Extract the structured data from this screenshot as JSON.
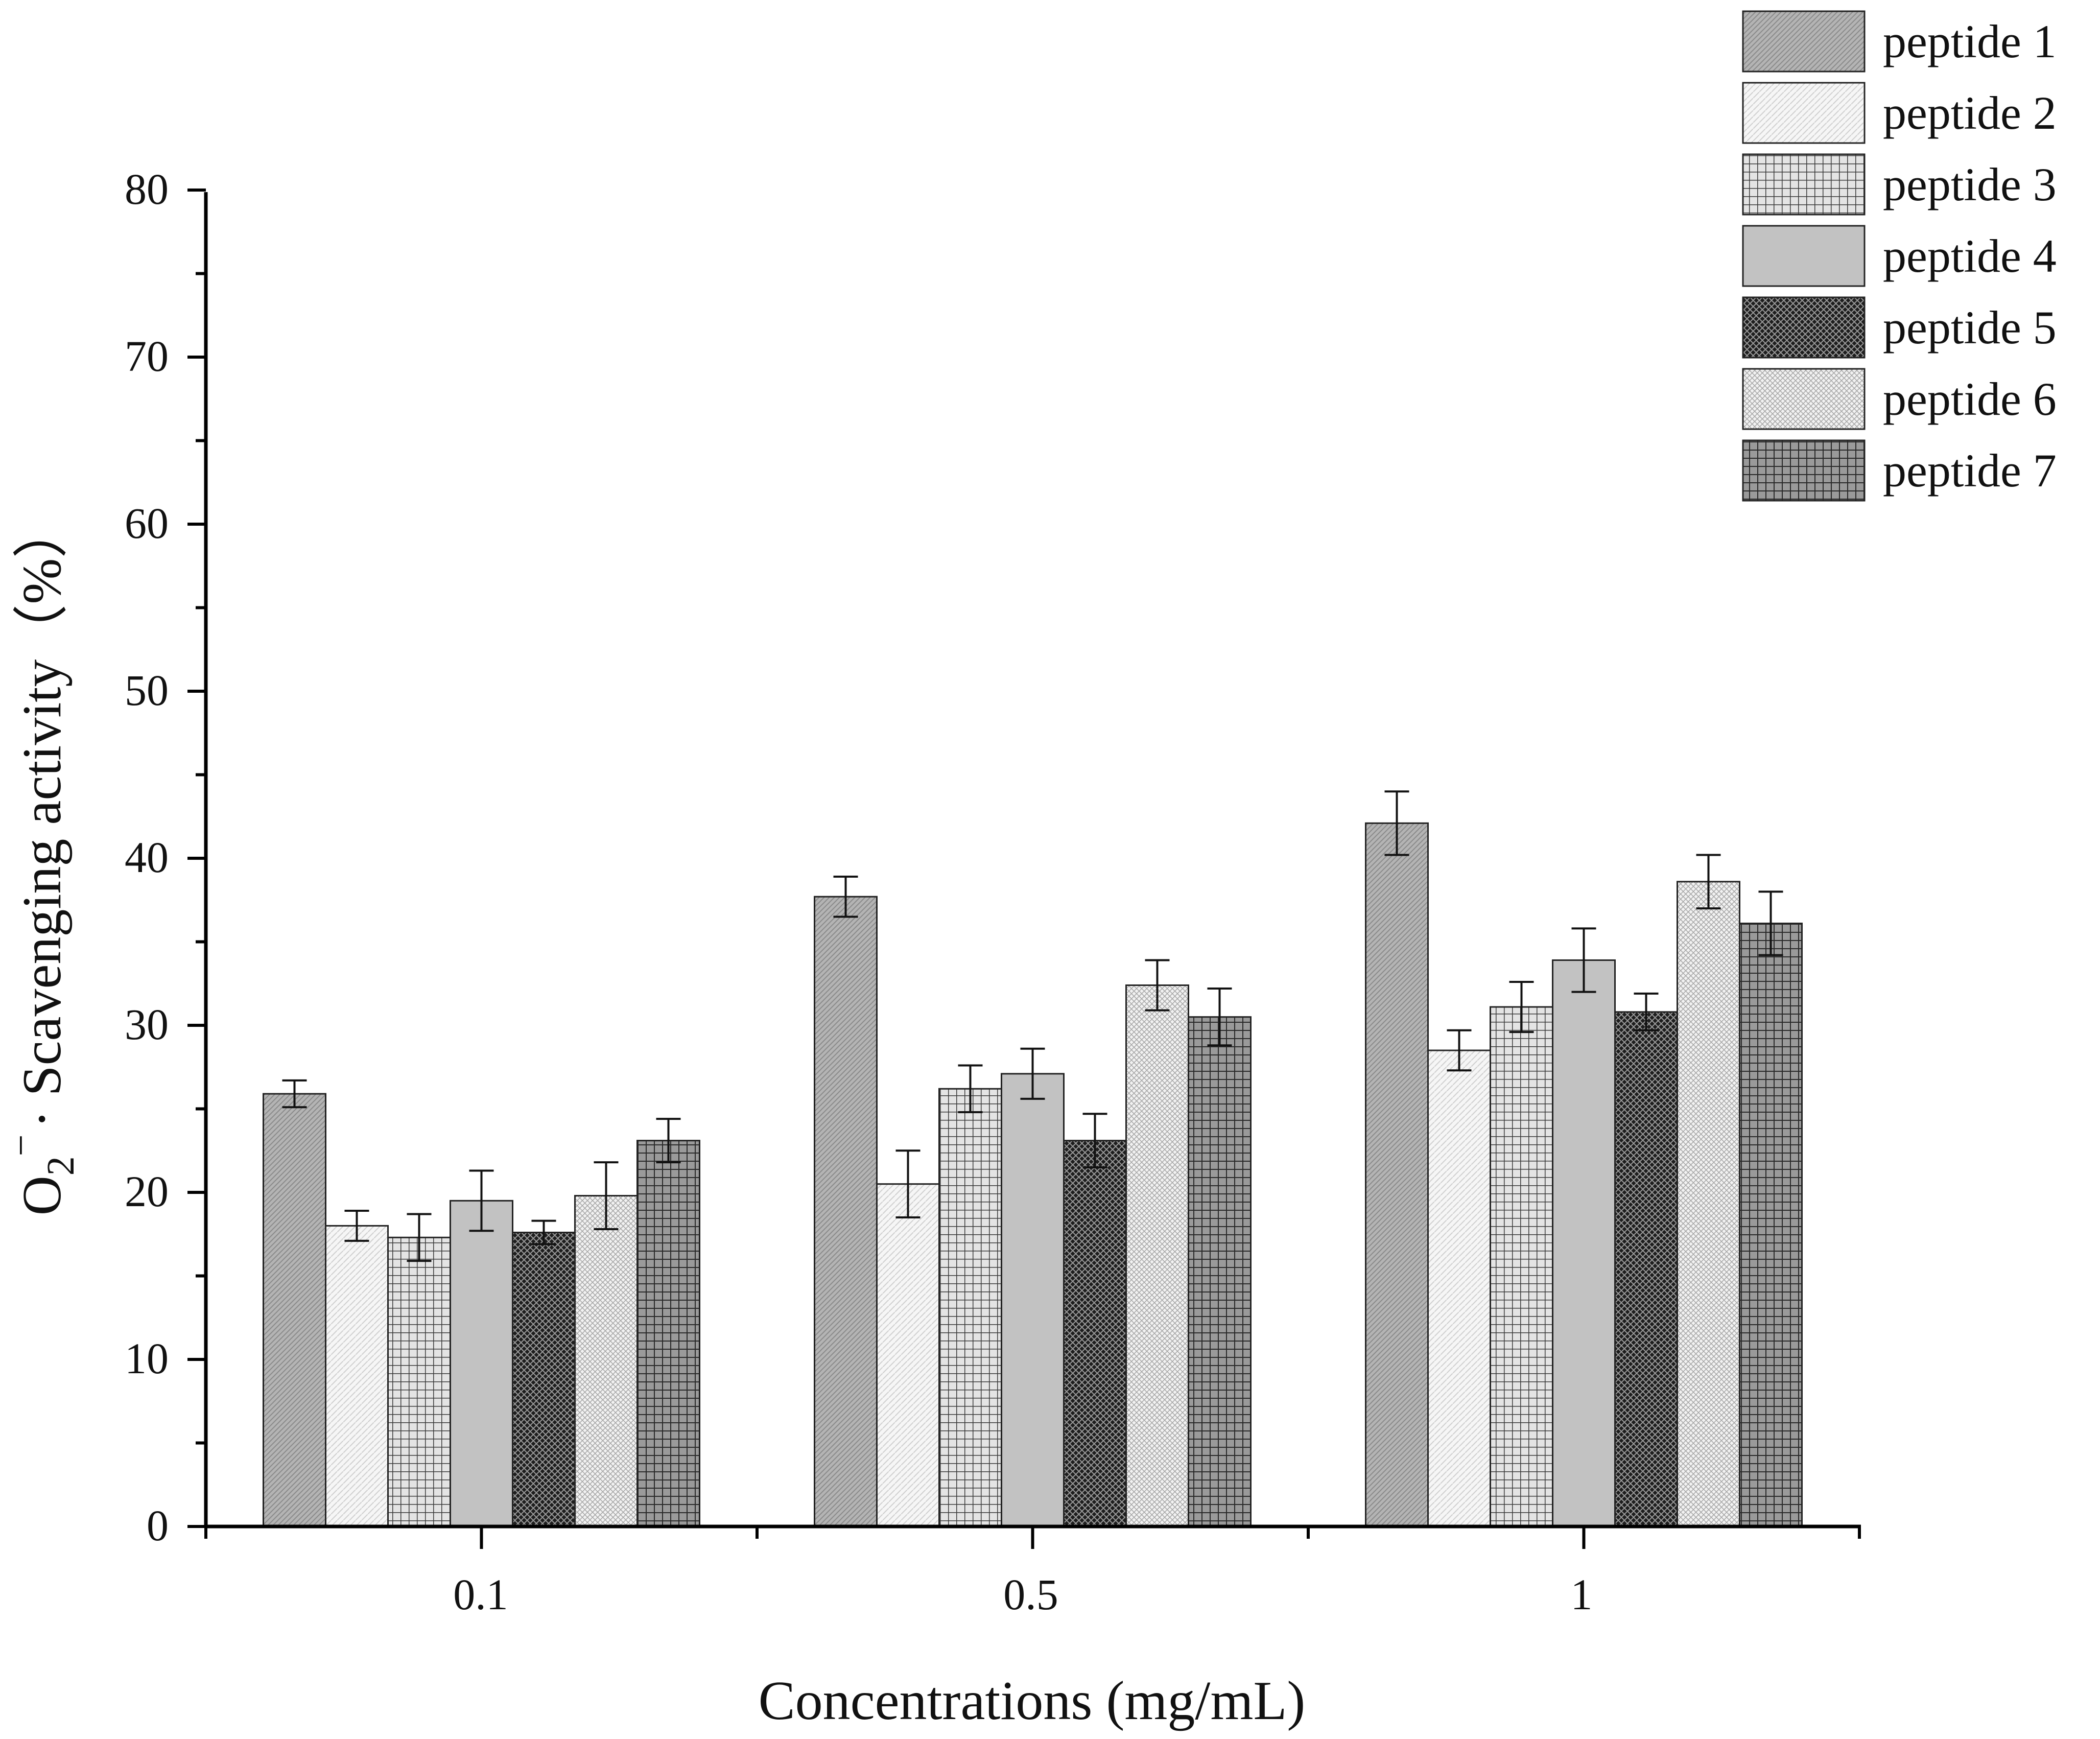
{
  "chart_data": {
    "type": "bar",
    "title": "",
    "xlabel": "Concentrations (mg/mL)",
    "ylabel": {
      "species": "O",
      "subscript": "2",
      "superscript": "−",
      "rest": "· Scavenging activity（%）"
    },
    "ylim": [
      0,
      80
    ],
    "yticks": [
      "0",
      "10",
      "20",
      "30",
      "40",
      "50",
      "60",
      "70",
      "80"
    ],
    "categories": [
      "0.1",
      "0.5",
      "1"
    ],
    "legend_position": "top-right",
    "series": [
      {
        "name": "peptide 1",
        "values": [
          25.9,
          37.7,
          42.1
        ],
        "errors": [
          0.8,
          1.2,
          1.9
        ],
        "color": "#a8a8a8",
        "pattern": "fine-diagonal"
      },
      {
        "name": "peptide 2",
        "values": [
          18.0,
          20.5,
          28.5
        ],
        "errors": [
          0.9,
          2.0,
          1.2
        ],
        "color": "#efefef",
        "pattern": "light-dots"
      },
      {
        "name": "peptide 3",
        "values": [
          17.3,
          26.2,
          31.1
        ],
        "errors": [
          1.4,
          1.4,
          1.5
        ],
        "color": "#d4d4d4",
        "pattern": "grid"
      },
      {
        "name": "peptide 4",
        "values": [
          19.5,
          27.1,
          33.9
        ],
        "errors": [
          1.8,
          1.5,
          1.9
        ],
        "color": "#c0c0c0",
        "pattern": "solid"
      },
      {
        "name": "peptide 5",
        "values": [
          17.6,
          23.1,
          30.8
        ],
        "errors": [
          0.7,
          1.6,
          1.1
        ],
        "color": "#2a2a2a",
        "pattern": "crosshatch"
      },
      {
        "name": "peptide 6",
        "values": [
          19.8,
          32.4,
          38.6
        ],
        "errors": [
          2.0,
          1.5,
          1.6
        ],
        "color": "#e6e6e6",
        "pattern": "dots"
      },
      {
        "name": "peptide 7",
        "values": [
          23.1,
          30.5,
          36.1
        ],
        "errors": [
          1.3,
          1.7,
          1.9
        ],
        "color": "#7a7a7a",
        "pattern": "dark-grid"
      }
    ]
  }
}
